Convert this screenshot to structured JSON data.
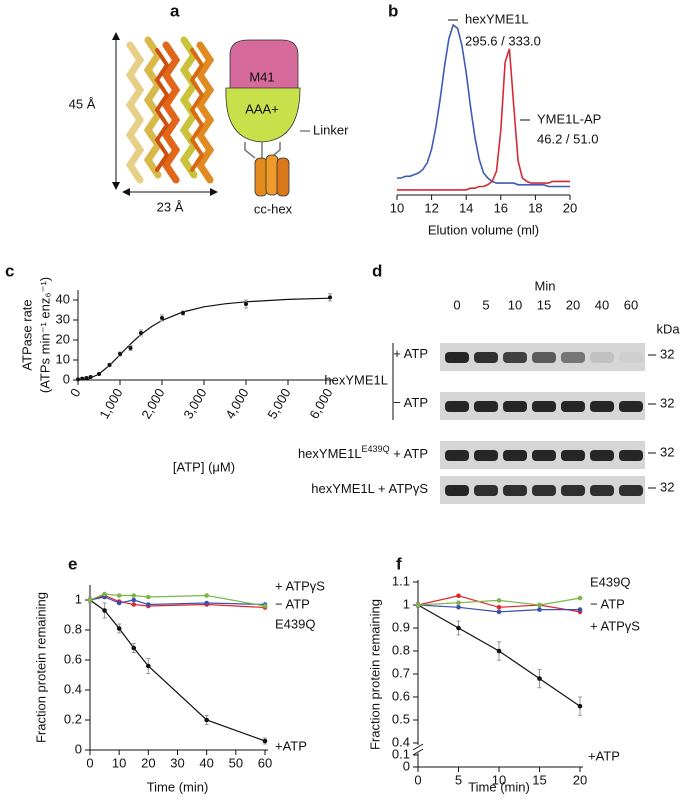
{
  "panel_labels": [
    "a",
    "b",
    "c",
    "d",
    "e",
    "f"
  ],
  "structure": {
    "height": "45 Å",
    "width": "23 Å",
    "top_domain": "M41",
    "bottom_domain": "AAA+",
    "linker": "Linker",
    "coil": "cc-hex"
  },
  "gel": {
    "time_title": "Min",
    "times": [
      "0",
      "5",
      "10",
      "15",
      "20",
      "40",
      "60"
    ],
    "mw_unit": "kDa",
    "group_label": "hexYME1L",
    "rows": [
      {
        "label": "+ ATP",
        "mw": "32",
        "intensity": [
          1,
          0.95,
          0.85,
          0.7,
          0.55,
          0.12,
          0.04
        ]
      },
      {
        "label": "− ATP",
        "mw": "32",
        "intensity": [
          1,
          1,
          1,
          1,
          1,
          1,
          1
        ]
      },
      {
        "label": "hexYME1L",
        "label_sup": "E439Q",
        "label_suffix": " + ATP",
        "mw": "32",
        "intensity": [
          1,
          1,
          1,
          1,
          1,
          1,
          1
        ]
      },
      {
        "label": "hexYME1L + ATPγS",
        "mw": "32",
        "intensity": [
          1,
          0.95,
          0.95,
          0.95,
          0.95,
          0.95,
          0.95
        ]
      }
    ]
  },
  "chart_data": [
    {
      "type": "line",
      "xlabel": "Elution volume (ml)",
      "annotations": [
        "hexYME1L",
        "295.6 / 333.0",
        "YME1L-AP",
        "46.2 / 51.0"
      ],
      "x": [
        10,
        10.25,
        10.5,
        10.75,
        11,
        11.25,
        11.5,
        11.75,
        12,
        12.25,
        12.5,
        12.75,
        13,
        13.25,
        13.5,
        13.75,
        14,
        14.25,
        14.5,
        14.75,
        15,
        15.25,
        15.5,
        15.75,
        16,
        16.25,
        16.5,
        16.75,
        17,
        17.25,
        17.5,
        17.75,
        18,
        18.25,
        18.5,
        18.75,
        19,
        19.25,
        19.5,
        19.75,
        20
      ],
      "xlim": [
        10,
        20
      ],
      "xticks": [
        10,
        12,
        14,
        16,
        18,
        20
      ],
      "ylim": [
        0,
        100
      ],
      "series": [
        {
          "color": "#3f5bb5",
          "values": [
            10,
            10,
            11,
            11,
            12,
            13,
            15,
            19,
            27,
            40,
            57,
            76,
            92,
            100,
            98,
            88,
            72,
            52,
            34,
            21,
            13,
            10,
            8,
            7,
            7,
            7,
            7,
            7,
            6,
            6,
            6,
            6,
            6,
            6,
            6,
            5,
            5,
            5,
            5,
            5,
            5
          ]
        },
        {
          "color": "#d42a35",
          "values": [
            3,
            3,
            3,
            3,
            3,
            3,
            3,
            3,
            3,
            3,
            3,
            3,
            3,
            3,
            3,
            3,
            3,
            4,
            4,
            5,
            5,
            6,
            8,
            14,
            38,
            78,
            86,
            52,
            20,
            10,
            8,
            7,
            7,
            7,
            7,
            7,
            8,
            8,
            8,
            8,
            8
          ]
        }
      ]
    },
    {
      "type": "scatter",
      "xlabel": "[ATP] (μM)",
      "ylabel": [
        "ATPase rate",
        "(ATPs min⁻¹ enz₆⁻¹)"
      ],
      "xlim": [
        0,
        6000
      ],
      "xticks": [
        0,
        {
          "value": 1000,
          "label": "1,000"
        },
        {
          "value": 2000,
          "label": "2,000"
        },
        {
          "value": 3000,
          "label": "3,000"
        },
        {
          "value": 4000,
          "label": "4,000"
        },
        {
          "value": 5000,
          "label": "5,000"
        },
        {
          "value": 6000,
          "label": "6,000"
        }
      ],
      "ylim": [
        0,
        45
      ],
      "yticks": [
        0,
        10,
        20,
        30,
        40
      ],
      "color": "#111111",
      "x": [
        0,
        100,
        200,
        300,
        500,
        750,
        1000,
        1250,
        1500,
        2000,
        2500,
        4000,
        6000
      ],
      "values": [
        0.3,
        0.7,
        1,
        1.5,
        3,
        7.5,
        13,
        16,
        23.5,
        31,
        33.5,
        38,
        41.3
      ],
      "errors": [
        0.2,
        0.3,
        0.3,
        0.4,
        0.5,
        0.8,
        1,
        1.2,
        1.5,
        1.5,
        1,
        2,
        1.8
      ],
      "fit": {
        "x": [
          0,
          250,
          500,
          750,
          1000,
          1250,
          1500,
          1750,
          2000,
          2500,
          3000,
          3500,
          4000,
          5000,
          6000
        ],
        "values": [
          0,
          0.55,
          3,
          7.3,
          12.6,
          18,
          22.8,
          26.7,
          29.8,
          34,
          36.6,
          38.1,
          39.1,
          40.3,
          40.9
        ]
      }
    },
    {
      "type": "line",
      "markers": true,
      "xlabel": "Time (min)",
      "ylabel": [
        "Fraction protein remaining"
      ],
      "x": [
        0,
        5,
        10,
        15,
        20,
        40,
        60
      ],
      "xlim": [
        0,
        60
      ],
      "xticks": [
        0,
        10,
        20,
        30,
        40,
        50,
        60
      ],
      "ylim": [
        0,
        1.1
      ],
      "yticks": [
        0,
        0.2,
        0.4,
        0.6,
        0.8,
        1
      ],
      "series": [
        {
          "name": "+ATP",
          "color": "#111111",
          "values": [
            1,
            0.93,
            0.81,
            0.68,
            0.56,
            0.2,
            0.06
          ],
          "errors": [
            0.02,
            0.05,
            0.03,
            0.03,
            0.05,
            0.03,
            0.02
          ]
        },
        {
          "name": "+ ATPγS",
          "color": "#e0262b",
          "values": [
            1,
            1.03,
            0.99,
            0.97,
            0.96,
            0.97,
            0.95
          ]
        },
        {
          "name": "− ATP",
          "color": "#3a4fb0",
          "values": [
            1,
            1.02,
            0.98,
            1,
            0.97,
            0.98,
            0.97
          ]
        },
        {
          "name": "E439Q",
          "color": "#7ab648",
          "values": [
            1,
            1.04,
            1.03,
            1.03,
            1.02,
            1.03,
            0.96
          ]
        }
      ]
    },
    {
      "type": "line",
      "markers": true,
      "xlabel": "Time (min)",
      "ylabel": [
        "Fraction protein remaining"
      ],
      "x": [
        0,
        5,
        10,
        15,
        20
      ],
      "xlim": [
        0,
        20
      ],
      "xticks": [
        0,
        5,
        10,
        15,
        20
      ],
      "ylim": [
        0,
        1.1
      ],
      "axis_break": [
        0.1,
        0.4
      ],
      "yticks": [
        0,
        0.1,
        0.4,
        0.5,
        0.6,
        0.7,
        0.8,
        0.9,
        1,
        1.1
      ],
      "series": [
        {
          "name": "+ATP",
          "color": "#111111",
          "values": [
            1,
            0.9,
            0.8,
            0.68,
            0.56
          ],
          "errors": [
            0.01,
            0.03,
            0.04,
            0.04,
            0.04
          ]
        },
        {
          "name": "+ ATPγS",
          "color": "#e0262b",
          "values": [
            1,
            1.04,
            0.99,
            1,
            0.97
          ]
        },
        {
          "name": "− ATP",
          "color": "#3a4fb0",
          "values": [
            1,
            0.99,
            0.97,
            0.98,
            0.98
          ]
        },
        {
          "name": "E439Q",
          "color": "#7ab648",
          "values": [
            1,
            1.01,
            1.02,
            1,
            1.03
          ]
        }
      ]
    }
  ]
}
